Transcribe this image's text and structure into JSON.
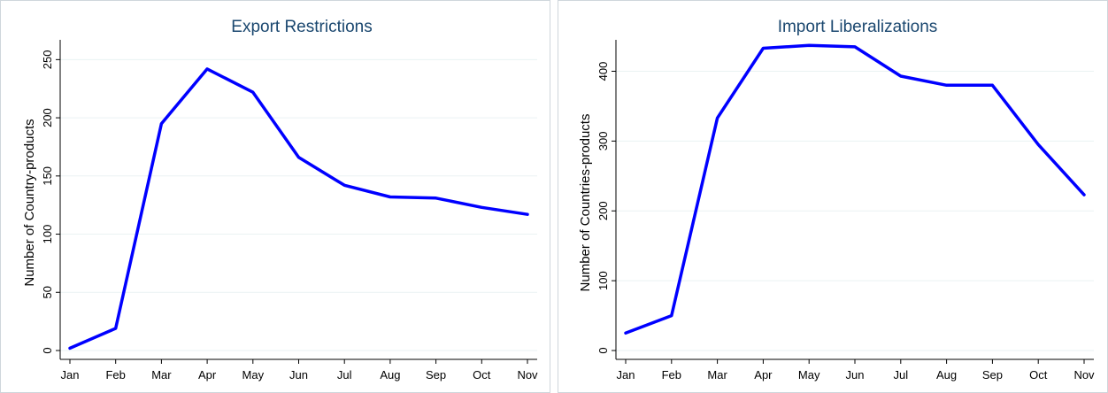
{
  "chart_data": [
    {
      "type": "line",
      "title": "Export Restrictions",
      "xlabel": "",
      "ylabel": "Number of Country-products",
      "categories": [
        "Jan",
        "Feb",
        "Mar",
        "Apr",
        "May",
        "Jun",
        "Jul",
        "Aug",
        "Sep",
        "Oct",
        "Nov"
      ],
      "series": [
        {
          "values": [
            2,
            19,
            195,
            242,
            222,
            166,
            142,
            132,
            131,
            123,
            117
          ]
        }
      ],
      "ylim": [
        0,
        250
      ],
      "yticks": [
        0,
        50,
        100,
        150,
        200,
        250
      ],
      "grid": true,
      "line_color": "#0000ff"
    },
    {
      "type": "line",
      "title": "Import Liberalizations",
      "xlabel": "",
      "ylabel": "Number of Countries-products",
      "categories": [
        "Jan",
        "Feb",
        "Mar",
        "Apr",
        "May",
        "Jun",
        "Jul",
        "Aug",
        "Sep",
        "Oct",
        "Nov"
      ],
      "series": [
        {
          "values": [
            25,
            50,
            333,
            433,
            437,
            435,
            393,
            380,
            380,
            295,
            223
          ]
        }
      ],
      "ylim": [
        0,
        400
      ],
      "yticks": [
        0,
        100,
        200,
        300,
        400
      ],
      "grid": true,
      "line_color": "#0000ff"
    }
  ]
}
